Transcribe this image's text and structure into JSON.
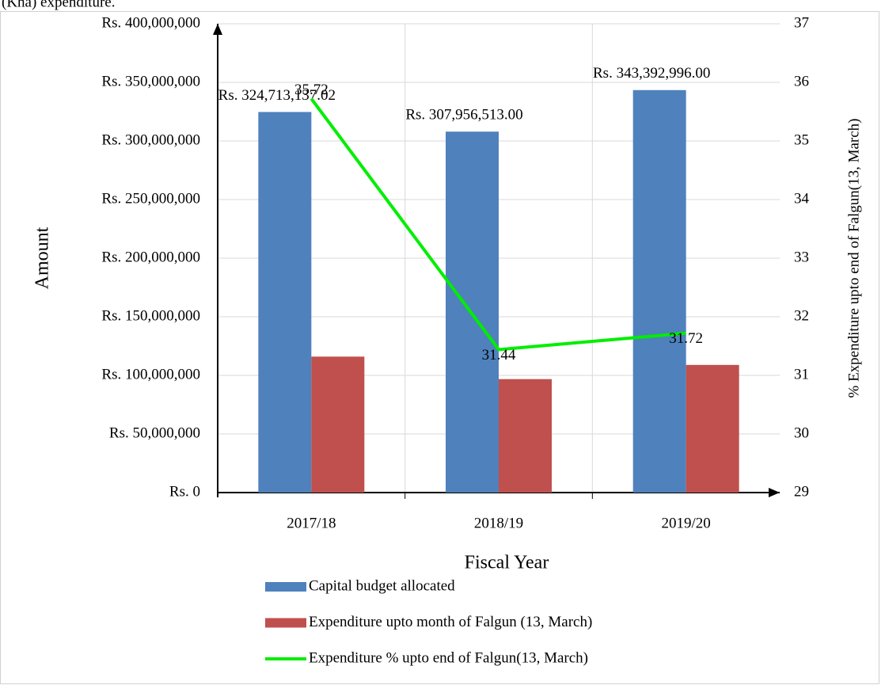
{
  "caption": "(Kha) expenditure.",
  "chart_data": {
    "type": "bar",
    "x_label": "Fiscal Year",
    "y_label": "Amount",
    "y2_label": "% Expenditure upto end of Falgun(13, March)",
    "categories": [
      "2017/18",
      "2018/19",
      "2019/20"
    ],
    "series": [
      {
        "name": "Capital budget allocated",
        "color": "#4f81bd",
        "values": [
          324713137.02,
          307956513.0,
          343392996.0
        ],
        "value_labels": [
          "Rs. 324,713,137.02",
          "Rs. 307,956,513.00",
          "Rs. 343,392,996.00"
        ]
      },
      {
        "name": "Expenditure upto month of Falgun (13, March)",
        "color": "#c0504d",
        "values": [
          116000000,
          96800000,
          108900000
        ]
      },
      {
        "name": "Expenditure % upto end of Falgun(13, March)",
        "color": "#00ee00",
        "type": "line",
        "axis": "y2",
        "values": [
          35.72,
          31.44,
          31.72
        ]
      }
    ],
    "ylim": [
      0,
      400000000
    ],
    "yticks": [
      {
        "value": 0,
        "label": "Rs. 0"
      },
      {
        "value": 50000000,
        "label": "Rs. 50,000,000"
      },
      {
        "value": 100000000,
        "label": "Rs. 100,000,000"
      },
      {
        "value": 150000000,
        "label": "Rs. 150,000,000"
      },
      {
        "value": 200000000,
        "label": "Rs. 200,000,000"
      },
      {
        "value": 250000000,
        "label": "Rs. 250,000,000"
      },
      {
        "value": 300000000,
        "label": "Rs. 300,000,000"
      },
      {
        "value": 350000000,
        "label": "Rs. 350,000,000"
      },
      {
        "value": 400000000,
        "label": "Rs. 400,000,000"
      }
    ],
    "y2lim": [
      29,
      37
    ],
    "y2ticks": [
      29,
      30,
      31,
      32,
      33,
      34,
      35,
      36,
      37
    ],
    "grid": true,
    "legend": "bottom"
  }
}
